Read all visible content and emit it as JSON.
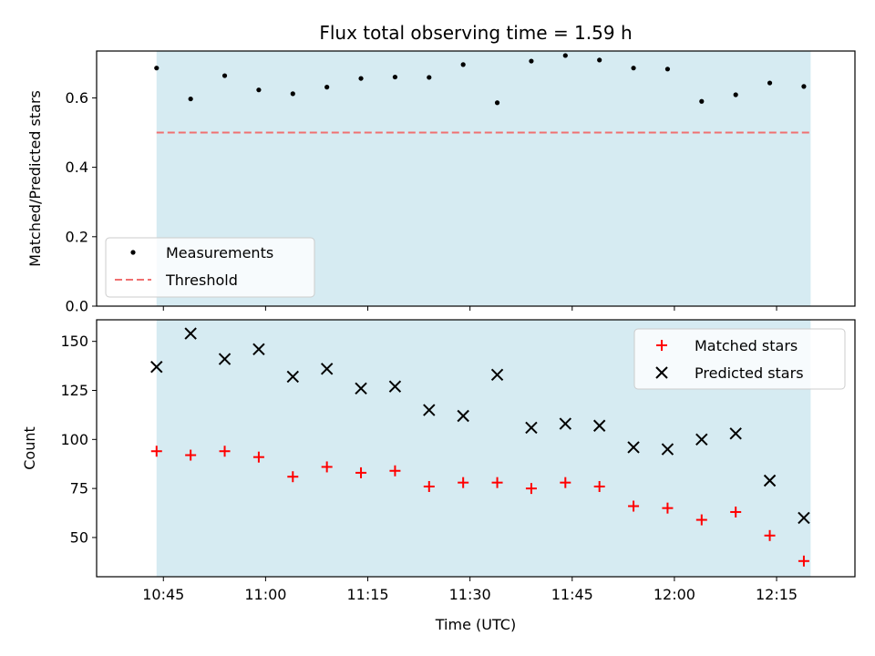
{
  "chart_data": [
    {
      "type": "scatter",
      "title": "Flux total observing time = 1.59 h",
      "xlabel": "",
      "ylabel": "Matched/Predicted stars",
      "ylim": [
        0,
        0.735
      ],
      "yticks": [
        "0.0",
        "0.2",
        "0.4",
        "0.6"
      ],
      "shaded_region_x": [
        "10:44",
        "12:20"
      ],
      "threshold": 0.5,
      "legend_position": "lower-left",
      "legend": [
        "Measurements",
        "Threshold"
      ],
      "series": [
        {
          "name": "Measurements",
          "marker": "dot",
          "color": "#000000",
          "x": [
            "10:44",
            "10:49",
            "10:54",
            "10:59",
            "11:04",
            "11:09",
            "11:14",
            "11:19",
            "11:24",
            "11:29",
            "11:34",
            "11:39",
            "11:44",
            "11:49",
            "11:54",
            "11:59",
            "12:04",
            "12:09",
            "12:14",
            "12:19"
          ],
          "y": [
            0.686,
            0.597,
            0.664,
            0.623,
            0.612,
            0.631,
            0.656,
            0.66,
            0.659,
            0.696,
            0.586,
            0.706,
            0.722,
            0.709,
            0.686,
            0.683,
            0.59,
            0.609,
            0.643,
            0.633
          ]
        },
        {
          "name": "Threshold",
          "style": "dashed",
          "color": "#f07070",
          "y": 0.5
        }
      ]
    },
    {
      "type": "scatter",
      "title": "",
      "xlabel": "Time (UTC)",
      "ylabel": "Count",
      "ylim": [
        30,
        161
      ],
      "yticks": [
        "50",
        "75",
        "100",
        "125",
        "150"
      ],
      "xticks": [
        "10:45",
        "11:00",
        "11:15",
        "11:30",
        "11:45",
        "12:00",
        "12:15"
      ],
      "shaded_region_x": [
        "10:44",
        "12:20"
      ],
      "legend_position": "top-right",
      "legend": [
        "Matched stars",
        "Predicted stars"
      ],
      "series": [
        {
          "name": "Matched stars",
          "marker": "plus",
          "color": "#ff0000",
          "x": [
            "10:44",
            "10:49",
            "10:54",
            "10:59",
            "11:04",
            "11:09",
            "11:14",
            "11:19",
            "11:24",
            "11:29",
            "11:34",
            "11:39",
            "11:44",
            "11:49",
            "11:54",
            "11:59",
            "12:04",
            "12:09",
            "12:14",
            "12:19"
          ],
          "y": [
            94,
            92,
            94,
            91,
            81,
            86,
            83,
            84,
            76,
            78,
            78,
            75,
            78,
            76,
            66,
            65,
            59,
            63,
            51,
            38
          ]
        },
        {
          "name": "Predicted stars",
          "marker": "x",
          "color": "#000000",
          "x": [
            "10:44",
            "10:49",
            "10:54",
            "10:59",
            "11:04",
            "11:09",
            "11:14",
            "11:19",
            "11:24",
            "11:29",
            "11:34",
            "11:39",
            "11:44",
            "11:49",
            "11:54",
            "11:59",
            "12:04",
            "12:09",
            "12:14",
            "12:19"
          ],
          "y": [
            137,
            154,
            141,
            146,
            132,
            136,
            126,
            127,
            115,
            112,
            133,
            106,
            108,
            107,
            96,
            95,
            100,
            103,
            79,
            60
          ]
        }
      ]
    }
  ]
}
